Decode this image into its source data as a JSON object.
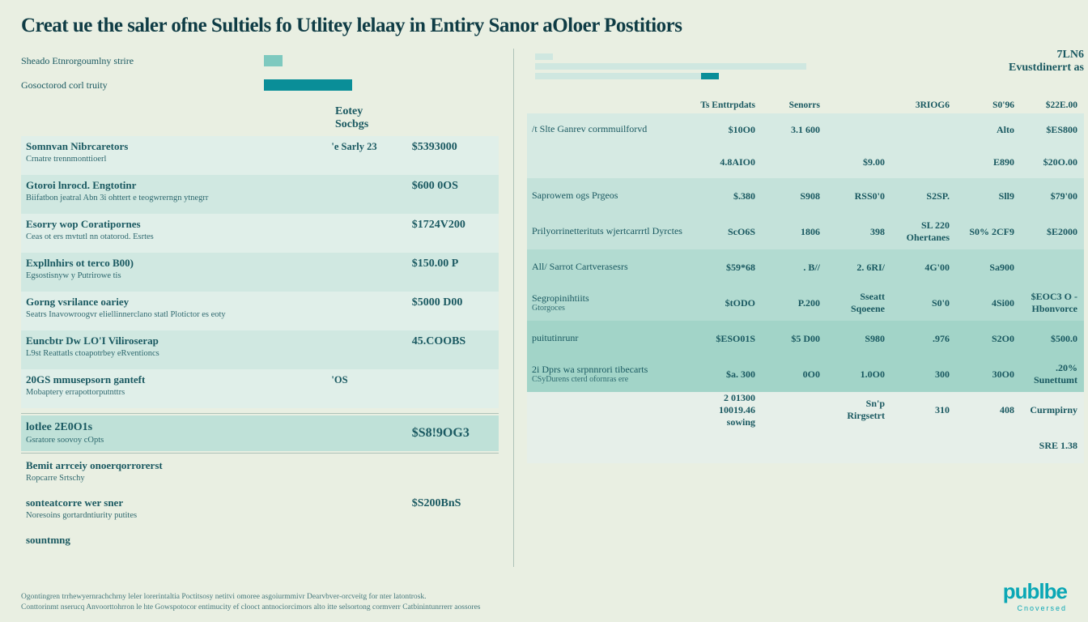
{
  "colors": {
    "page_bg": "#e9efe2",
    "title_color": "#0f3c45",
    "text_color": "#1a5961",
    "muted_text": "#2a6a71",
    "bar_teal": "#0a8e98",
    "bar_mint": "#7ec9bf",
    "panel_light": "#d2e7e0",
    "panel_mid": "#b6dcd3",
    "panel_dark": "#98cfc5",
    "row_tint_a": "#e0efe9",
    "row_tint_b": "#d0e8e1",
    "total_band": "#bfe1d8",
    "divider": "#6fa9a8",
    "brand_color": "#0aa7b5"
  },
  "title": "Creat ue the saler ofne Sultiels fo Utlitey lelaay in Entiry Sanor aOloer Postitiors",
  "left_top": [
    {
      "label": "Sheado Etnrorgoumlny strire",
      "bar_width_pct": 9,
      "bar_color": "#7ec9bf"
    },
    {
      "label": "Gosoctorod corl truity",
      "bar_width_pct": 42,
      "bar_color": "#0a8e98"
    }
  ],
  "left_headers": {
    "col1": "Eotey",
    "col1b": "Socbgs",
    "col2": ""
  },
  "left_rows": [
    {
      "line1": "Somnvan Nibrcaretors",
      "line2": "Crnatre trennmonttioerl",
      "c1": "'e  Sarly 23",
      "c2": "$5393000"
    },
    {
      "line1": "Gtoroi lnrocd. Engtotinr",
      "line2": "Biifatbon jeatral Abn 3i ohttert e teogwrerngn ytnegrr",
      "c1": "",
      "c2": "$600 0OS"
    },
    {
      "line1": "Esorry wop Coratipornes",
      "line2": "Ceas ot ers mvtutl nn otatorod. Esrtes",
      "c1": "",
      "c2": "$1724V200"
    },
    {
      "line1": "Expllnhirs ot terco B00)",
      "line2": "Egsostisnyw y Putrirowe tis",
      "c1": "",
      "c2": "$150.00 P"
    },
    {
      "line1": "Gorng vsrilance oariey",
      "line2": "Seatrs Inavowroogvr eliellinnerclano statl Plotictor es eoty",
      "c1": "",
      "c2": "$5000 D00"
    },
    {
      "line1": "Euncbtr Dw LO'I Viliroserap",
      "line2": "L9st Reattatls ctoapotrbey eRventioncs",
      "c1": "",
      "c2": "45.COOBS"
    },
    {
      "line1": "20GS mmusepsorn ganteft",
      "line2": "Mobaptery errapottorputnttrs",
      "c1": "'OS",
      "c2": ""
    }
  ],
  "left_total": {
    "line1": "lotlee 2E0O1s",
    "line2": "Gsratore soovoy cOpts",
    "c2": "$S8!9OG3"
  },
  "left_bottom": [
    {
      "line1": "Bemit arrceiy onoerqorrorerst",
      "line2": "Ropcarre Srtschy",
      "c2": ""
    },
    {
      "line1": "sonteatcorre wer sner",
      "line2": "Noresoins gortardntiurity putites",
      "c2": "$S200BnS"
    },
    {
      "line1": "sountmng",
      "line2": "",
      "c2": ""
    }
  ],
  "right_header": {
    "line1": "7LN6",
    "line2": "Evustdinerrt as"
  },
  "right_minibars": [
    {
      "width_pct": 4,
      "color": "#cfe7e0"
    },
    {
      "width_pct": 62,
      "color": "#cfe7e0"
    },
    {
      "width_pct": 40,
      "color": "#cfe7e0",
      "accent_left_pct": 38,
      "accent_width_pct": 4,
      "accent_color": "#0a8e98"
    }
  ],
  "right_col_headers": [
    "Ts Enttrpdats",
    "Senorrs",
    "",
    "3RIOG6",
    "S0'96",
    "$22E.00"
  ],
  "right_rows": [
    {
      "l1": "/t  Slte Ganrev cormmuilforvd",
      "l2": "",
      "cells": [
        "$10O0",
        "3.1 600",
        "",
        "",
        "Alto",
        "$ES800"
      ],
      "band": 1
    },
    {
      "l1": "",
      "l2": "",
      "cells": [
        "4.8AIO0",
        "",
        "$9.00",
        "",
        "E890",
        "$20O.00"
      ],
      "band": 1
    },
    {
      "l1": "Saprowem ogs Prgeos",
      "l2": "",
      "cells": [
        "$.380",
        "S908",
        "RSS0'0",
        "S2SP.",
        "Sll9",
        "$79'00"
      ],
      "band": 2
    },
    {
      "l1": "Prilyorrinetterituts wjertcarrrtl Dyrctes",
      "l2": "",
      "cells": [
        "ScO6S",
        "1806",
        "398",
        "SL 220 Ohertanes",
        "S0% 2CF9",
        "$E2000"
      ],
      "band": 2
    },
    {
      "l1": "All/ Sarrot Cartverasesrs",
      "l2": "",
      "cells": [
        "$59*68",
        ". B//",
        "2. 6RI/",
        "4G'00",
        "Sa900",
        ""
      ],
      "band": 3
    },
    {
      "l1": "Segropinihtiits",
      "l2": "Gtorgoces",
      "cells": [
        "$tODO",
        "P.200",
        "Sseatt Sqoeene",
        "S0'0",
        "4Si00",
        "$EOC3 O -Hbonvorce"
      ],
      "band": 3
    },
    {
      "l1": "puitutinrunr",
      "l2": "",
      "cells": [
        "$ESO01S",
        "$5 D00",
        "S980",
        ".976",
        "S2O0",
        "$500.0"
      ],
      "band": 4
    },
    {
      "l1": "2i Dprs wa srpnnrori tibecarts",
      "l2": "CSyDurens cterd ofornras ere",
      "cells": [
        "$a. 300",
        "0O0",
        "1.0O0",
        "300",
        "30O0",
        ".20% Sunettumt"
      ],
      "band": 4
    },
    {
      "l1": "",
      "l2": "",
      "cells": [
        "2  01300 10019.46 sowing",
        "",
        "Sn'p Rirgsetrt",
        "310",
        "408",
        "Curmpirny"
      ],
      "band": 5
    },
    {
      "l1": "",
      "l2": "",
      "cells": [
        "",
        "",
        "",
        "",
        "",
        "SRE 1.38"
      ],
      "band": 5
    }
  ],
  "right_band_colors": {
    "1": "#d6eae3",
    "2": "#c4e2da",
    "3": "#b2dbd1",
    "4": "#a2d4c8",
    "5": "#e6efe9"
  },
  "footnote": {
    "l1": "Ogontingren trrhewyernrachchrny leler lorerintaltia Poctitsosy netitvi omoree  asgoiurmmivr Dearvbver-orcveitg for nter latontrosk.",
    "l2": "Conttorinmt nserucq Anvoorttohrron le hte Gowspotocor entimucity ef clooct antnociorcimors  alto itte selsortong cormverr Catbinintunrrerr aossores"
  },
  "brand": {
    "name": "publbe",
    "sub": "Cnoversed"
  }
}
